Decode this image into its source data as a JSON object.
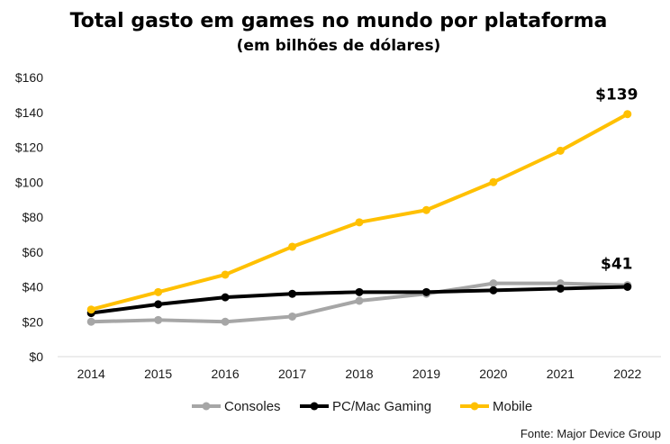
{
  "chart_data": {
    "type": "line",
    "title": "Total gasto em games no mundo por plataforma",
    "subtitle": "(em bilhões de dólares)",
    "xlabel": "",
    "ylabel": "",
    "categories": [
      "2014",
      "2015",
      "2016",
      "2017",
      "2018",
      "2019",
      "2020",
      "2021",
      "2022"
    ],
    "ylim": [
      0,
      160
    ],
    "yticks": [
      0,
      20,
      40,
      60,
      80,
      100,
      120,
      140,
      160
    ],
    "ytick_labels": [
      "$0",
      "$20",
      "$40",
      "$60",
      "$80",
      "$100",
      "$120",
      "$140",
      "$160"
    ],
    "grid": false,
    "legend_position": "bottom",
    "series": [
      {
        "name": "Consoles",
        "color": "#a6a6a6",
        "values": [
          20,
          21,
          20,
          23,
          32,
          36,
          42,
          42,
          41
        ]
      },
      {
        "name": "PC/Mac Gaming",
        "color": "#000000",
        "values": [
          25,
          30,
          34,
          36,
          37,
          37,
          38,
          39,
          40
        ]
      },
      {
        "name": "Mobile",
        "color": "#ffc000",
        "values": [
          27,
          37,
          47,
          63,
          77,
          84,
          100,
          118,
          139
        ]
      }
    ],
    "annotations": [
      {
        "text": "$139",
        "series": "Mobile",
        "category": "2022"
      },
      {
        "text": "$41",
        "series": "Consoles",
        "category": "2022"
      }
    ],
    "source": "Fonte: Major Device Group"
  }
}
